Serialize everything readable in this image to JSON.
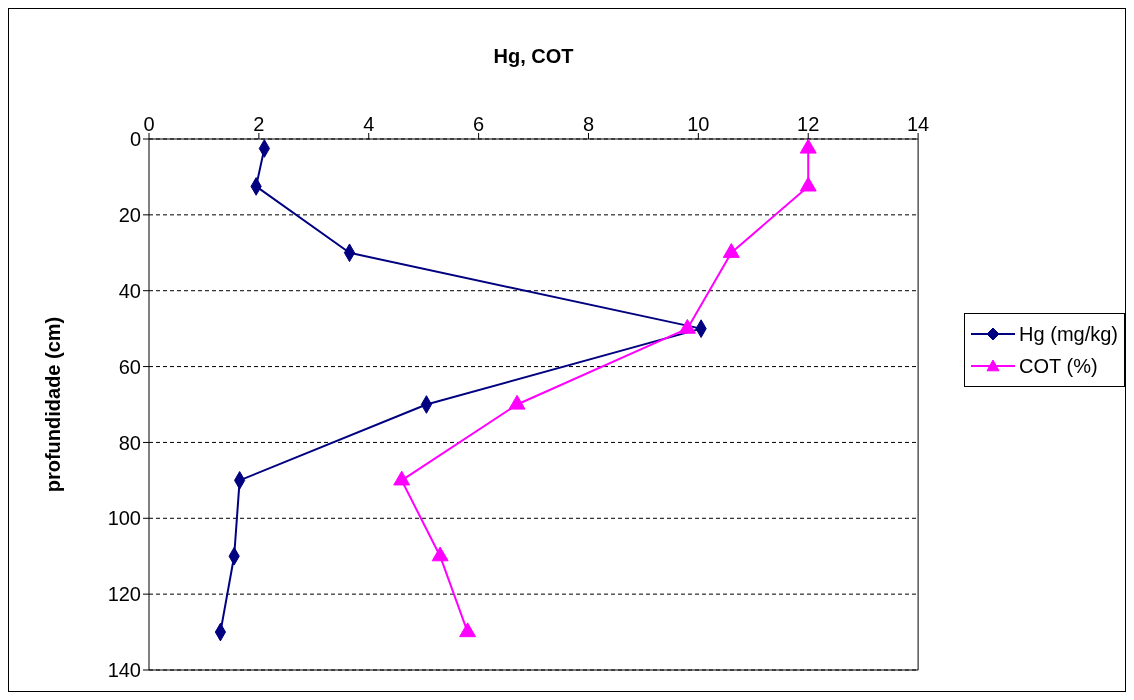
{
  "chart_data": {
    "type": "line",
    "orientation": "horizontal",
    "xlabel": "Hg, COT",
    "ylabel": "profundidade (cm)",
    "x": [
      2.5,
      12.5,
      30,
      50,
      70,
      90,
      110,
      130
    ],
    "series": [
      {
        "name": "Hg (mg/kg)",
        "color": "#000080",
        "marker": "diamond",
        "values": [
          2.1,
          1.95,
          3.65,
          10.05,
          5.05,
          1.65,
          1.55,
          1.3
        ]
      },
      {
        "name": "COT (%)",
        "color": "#ff00ff",
        "marker": "triangle",
        "values": [
          12,
          12,
          10.6,
          9.8,
          6.7,
          4.6,
          5.3,
          5.8
        ]
      }
    ],
    "xlim": [
      0,
      14
    ],
    "xticks": [
      0,
      2,
      4,
      6,
      8,
      10,
      12,
      14
    ],
    "ylim": [
      140,
      0
    ],
    "yticks": [
      0,
      20,
      40,
      60,
      80,
      100,
      120,
      140
    ],
    "grid": "y",
    "legend": "right"
  }
}
